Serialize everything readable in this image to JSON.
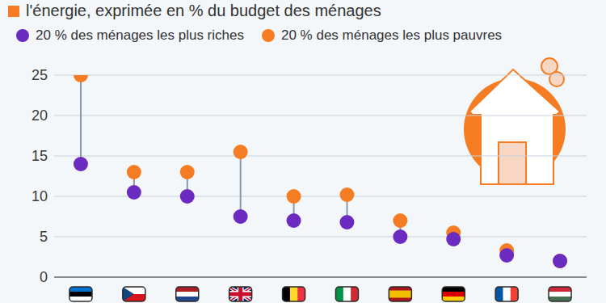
{
  "chart_data": {
    "type": "dumbbell",
    "subtitle": "l'énergie, exprimée en % du budget des ménages",
    "categories": [
      null,
      null,
      null,
      null,
      null,
      null,
      null,
      null,
      null,
      null
    ],
    "series": [
      {
        "name": "20 % des ménages les plus riches",
        "color": "#6b2bc0",
        "values": [
          14,
          10.5,
          10,
          7.5,
          7,
          6.8,
          5,
          4.7,
          2.7,
          2
        ]
      },
      {
        "name": "20 % des ménages les plus pauvres",
        "color": "#f57c22",
        "values": [
          25,
          13,
          13,
          15.5,
          10,
          10.2,
          7,
          5.5,
          3.3,
          2
        ]
      }
    ],
    "ylim": [
      0,
      25
    ],
    "yticks": [
      0,
      5,
      10,
      15,
      20,
      25
    ],
    "grid": true,
    "legend": "top"
  }
}
